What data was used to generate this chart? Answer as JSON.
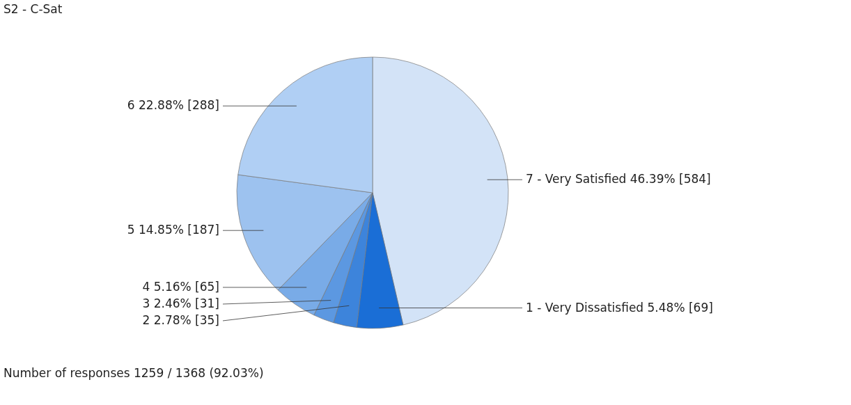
{
  "chart_data": {
    "type": "pie",
    "title": "S2 - C-Sat",
    "categories": [
      "7 - Very Satisfied",
      "1 - Very Dissatisfied",
      "2",
      "3",
      "4",
      "5",
      "6"
    ],
    "values": [
      584,
      69,
      35,
      31,
      65,
      187,
      288
    ],
    "value_labels": [
      "46.39% [584]",
      "5.48% [69]",
      "2.78% [35]",
      "2.46% [31]",
      "5.16% [65]",
      "14.85% [187]",
      "22.88% [288]"
    ],
    "colors": [
      "#d3e3f7",
      "#1a6ed6",
      "#3d84db",
      "#5c98e1",
      "#79abe7",
      "#9dc2ef",
      "#b0cff4"
    ],
    "legend": false,
    "annotations": [
      "Number of responses 1259 / 1368 (92.03%)"
    ]
  }
}
